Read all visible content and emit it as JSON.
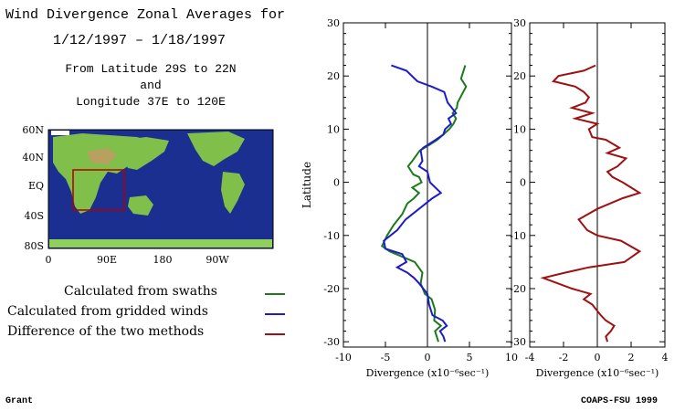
{
  "header": {
    "title_line1": "Wind Divergence Zonal Averages for",
    "title_line2": "1/12/1997 – 1/18/1997",
    "region_line1": "From Latitude 29S to 22N",
    "region_line2": "and",
    "region_line3": "Longitude 37E to 120E"
  },
  "map": {
    "lat_labels": [
      "60N",
      "40N",
      "EQ",
      "40S",
      "80S"
    ],
    "lon_labels": [
      "0",
      "90E",
      "180",
      "90W"
    ],
    "ocean_color": "#1a2f8f",
    "land_color": "#7fbf4a",
    "box_color": "#b00000"
  },
  "legend": [
    {
      "label": "Calculated from swaths",
      "color": "#1b7a1b"
    },
    {
      "label": "Calculated from gridded winds",
      "color": "#1c1cc8"
    },
    {
      "label": "Difference of the two methods",
      "color": "#a01010"
    }
  ],
  "footer": {
    "left": "Grant",
    "right": "COAPS-FSU 1999"
  },
  "chart_data": [
    {
      "type": "line",
      "ylabel": "Latitude",
      "xlabel": "Divergence (x10⁻⁶sec⁻¹)",
      "xlim": [
        -10,
        10
      ],
      "ylim": [
        -31,
        30
      ],
      "xticks": [
        -10,
        -5,
        0,
        5,
        10
      ],
      "yticks": [
        -30,
        -20,
        -10,
        0,
        10,
        20,
        30
      ],
      "zero_line": true,
      "series": [
        {
          "color": "#1b7a1b",
          "points": [
            [
              4.5,
              22
            ],
            [
              4.0,
              19.5
            ],
            [
              4.6,
              18
            ],
            [
              3.6,
              15
            ],
            [
              3.5,
              14
            ],
            [
              3.0,
              13
            ],
            [
              3.4,
              12
            ],
            [
              3.1,
              11
            ],
            [
              2.6,
              10
            ],
            [
              1.2,
              8
            ],
            [
              0.2,
              7
            ],
            [
              -0.9,
              6
            ],
            [
              -1.8,
              4
            ],
            [
              -2.3,
              3
            ],
            [
              -1.7,
              1.5
            ],
            [
              -1.0,
              1
            ],
            [
              -0.7,
              0
            ],
            [
              -1.8,
              -1
            ],
            [
              -1.0,
              -2
            ],
            [
              -1.6,
              -3
            ],
            [
              -2.4,
              -4
            ],
            [
              -3.0,
              -6
            ],
            [
              -4.0,
              -8
            ],
            [
              -4.8,
              -10
            ],
            [
              -5.4,
              -12
            ],
            [
              -4.5,
              -13
            ],
            [
              -3.0,
              -14
            ],
            [
              -1.5,
              -15
            ],
            [
              -0.6,
              -17
            ],
            [
              -0.8,
              -19
            ],
            [
              -0.3,
              -21
            ],
            [
              0.5,
              -22
            ],
            [
              0.9,
              -24
            ],
            [
              0.8,
              -26
            ],
            [
              1.6,
              -27
            ],
            [
              0.9,
              -28
            ],
            [
              1.3,
              -30
            ]
          ]
        },
        {
          "color": "#1c1cc8",
          "points": [
            [
              -4.3,
              22
            ],
            [
              -2.5,
              21
            ],
            [
              -1.2,
              19
            ],
            [
              0.5,
              18
            ],
            [
              2.0,
              17
            ],
            [
              2.4,
              15
            ],
            [
              3.4,
              13
            ],
            [
              2.5,
              12
            ],
            [
              2.8,
              11
            ],
            [
              2.1,
              10
            ],
            [
              1.9,
              9
            ],
            [
              1.0,
              8
            ],
            [
              -0.5,
              6.5
            ],
            [
              -0.8,
              6
            ],
            [
              -0.6,
              4
            ],
            [
              -1.0,
              3
            ],
            [
              0.0,
              2
            ],
            [
              0.3,
              0
            ],
            [
              1.6,
              -2
            ],
            [
              0.6,
              -3
            ],
            [
              -1.0,
              -5
            ],
            [
              -2.6,
              -7
            ],
            [
              -3.6,
              -9
            ],
            [
              -5.2,
              -11
            ],
            [
              -5.0,
              -12.5
            ],
            [
              -3.0,
              -13.5
            ],
            [
              -2.5,
              -15
            ],
            [
              -3.6,
              -16
            ],
            [
              -2.4,
              -17
            ],
            [
              -1.6,
              -18
            ],
            [
              -1.0,
              -19
            ],
            [
              0.0,
              -21
            ],
            [
              0.2,
              -23
            ],
            [
              0.6,
              -25
            ],
            [
              1.8,
              -26
            ],
            [
              2.3,
              -27
            ],
            [
              1.5,
              -28
            ],
            [
              1.9,
              -29
            ],
            [
              2.1,
              -30
            ]
          ]
        }
      ]
    },
    {
      "type": "line",
      "xlabel": "Divergence (x10⁻⁶sec⁻¹)",
      "xlim": [
        -4,
        4
      ],
      "ylim": [
        -31,
        30
      ],
      "xticks": [
        -4,
        -2,
        0,
        2,
        4
      ],
      "yticks": [
        -30,
        -20,
        -10,
        0,
        10,
        20,
        30
      ],
      "zero_line": true,
      "series": [
        {
          "color": "#a01010",
          "points": [
            [
              -0.1,
              22
            ],
            [
              -0.8,
              21
            ],
            [
              -2.3,
              20
            ],
            [
              -2.6,
              19
            ],
            [
              -1.3,
              18
            ],
            [
              -0.8,
              17
            ],
            [
              -0.5,
              16
            ],
            [
              -0.7,
              15
            ],
            [
              -1.5,
              14
            ],
            [
              -0.3,
              13
            ],
            [
              -1.3,
              12
            ],
            [
              0.0,
              11
            ],
            [
              -0.5,
              10
            ],
            [
              -0.3,
              8.5
            ],
            [
              0.5,
              8
            ],
            [
              1.3,
              6.5
            ],
            [
              0.6,
              5.5
            ],
            [
              1.7,
              4.5
            ],
            [
              1.2,
              3
            ],
            [
              0.6,
              2
            ],
            [
              0.9,
              1
            ],
            [
              1.5,
              0
            ],
            [
              2.0,
              -1
            ],
            [
              2.5,
              -2
            ],
            [
              1.5,
              -3
            ],
            [
              0.0,
              -5
            ],
            [
              -1.1,
              -7
            ],
            [
              -0.6,
              -9
            ],
            [
              0.0,
              -10
            ],
            [
              1.4,
              -11
            ],
            [
              2.5,
              -13
            ],
            [
              1.6,
              -15
            ],
            [
              -0.5,
              -16
            ],
            [
              -1.9,
              -17
            ],
            [
              -3.2,
              -18
            ],
            [
              -1.5,
              -20
            ],
            [
              -0.4,
              -21
            ],
            [
              -0.8,
              -22
            ],
            [
              -0.3,
              -23
            ],
            [
              0.2,
              -25
            ],
            [
              0.5,
              -26
            ],
            [
              1.0,
              -27
            ],
            [
              0.8,
              -28
            ],
            [
              0.5,
              -29
            ],
            [
              0.6,
              -30
            ]
          ]
        }
      ]
    }
  ]
}
